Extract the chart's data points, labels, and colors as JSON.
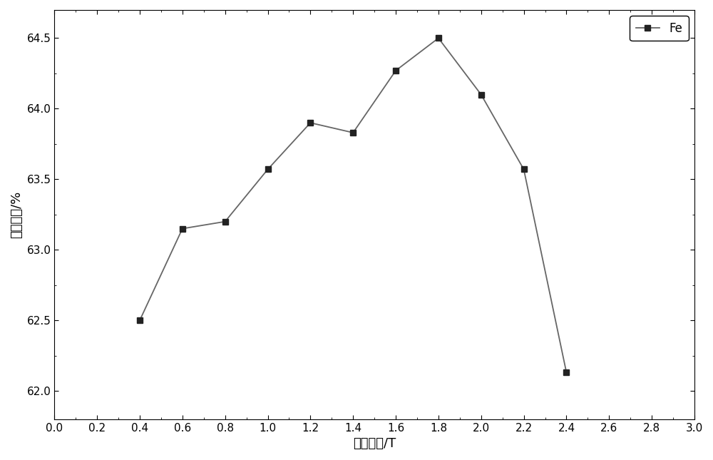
{
  "x": [
    0.4,
    0.6,
    0.8,
    1.0,
    1.2,
    1.4,
    1.6,
    1.8,
    2.0,
    2.2,
    2.4
  ],
  "y": [
    62.5,
    63.15,
    63.2,
    63.57,
    63.9,
    63.83,
    64.27,
    64.5,
    64.1,
    63.57,
    62.13
  ],
  "xlim": [
    0.0,
    3.0
  ],
  "ylim": [
    61.8,
    64.7
  ],
  "xticks": [
    0.0,
    0.2,
    0.4,
    0.6,
    0.8,
    1.0,
    1.2,
    1.4,
    1.6,
    1.8,
    2.0,
    2.2,
    2.4,
    2.6,
    2.8,
    3.0
  ],
  "yticks": [
    62.0,
    62.5,
    63.0,
    63.5,
    64.0,
    64.5
  ],
  "xlabel": "磁场强度/T",
  "ylabel": "质量分数/%",
  "legend_label": "Fe",
  "line_color": "#666666",
  "marker": "s",
  "marker_color": "#222222",
  "marker_size": 6,
  "line_width": 1.3,
  "background_color": "#ffffff",
  "figure_background": "#ffffff"
}
